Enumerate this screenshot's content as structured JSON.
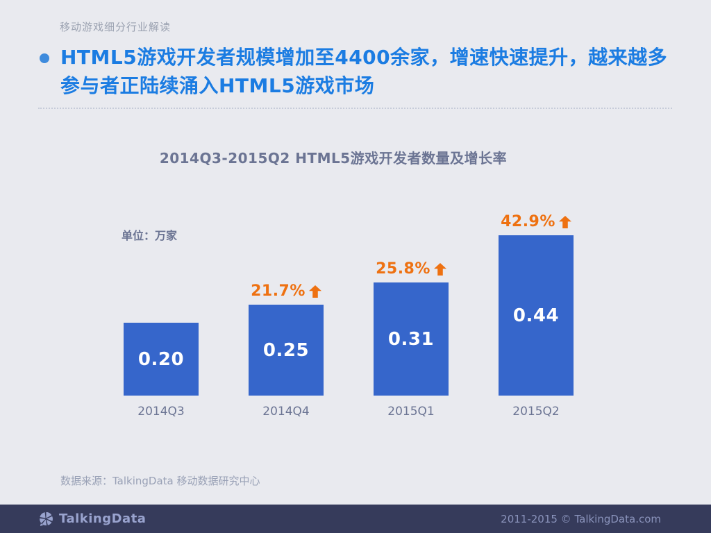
{
  "page": {
    "eyebrow": "移动游戏细分行业解读",
    "title_line1": "HTML5游戏开发者规模增加至4400余家，增速快速提升，越来越多",
    "title_line2": "参与者正陆续涌入HTML5游戏市场",
    "source": "数据来源：TalkingData 移动数据研究中心"
  },
  "chart_data": {
    "type": "bar",
    "title": "2014Q3-2015Q2 HTML5游戏开发者数量及增长率",
    "unit_label": "单位：万家",
    "categories": [
      "2014Q3",
      "2014Q4",
      "2015Q1",
      "2015Q2"
    ],
    "values": [
      0.2,
      0.25,
      0.31,
      0.44
    ],
    "value_labels": [
      "0.20",
      "0.25",
      "0.31",
      "0.44"
    ],
    "growth_labels": [
      null,
      "21.7%",
      "25.8%",
      "42.9%"
    ],
    "growth_icon": "up-arrow",
    "ylabel": "",
    "xlabel": "",
    "ylim": [
      0,
      0.5
    ],
    "grid": false,
    "legend": "none",
    "bar_color": "#3666CB",
    "value_text_color": "#FFFFFF",
    "growth_color": "#EE7111",
    "axis_label_color": "#6B7493"
  },
  "footer": {
    "brand": "TalkingData",
    "logo_icon": "pinwheel-speech-bubble",
    "copyright": "2011-2015 © TalkingData.com",
    "background": "#363B5B",
    "brand_color": "#99A3CE",
    "copyright_color": "#8A93BB"
  },
  "colors": {
    "background": "#E9EAEF",
    "title_blue": "#1B7CE2",
    "bullet_blue": "#3E8BDD",
    "slate_text": "#6B7493",
    "muted_text": "#99A1B6",
    "eyebrow_text": "#9BA2B1"
  }
}
